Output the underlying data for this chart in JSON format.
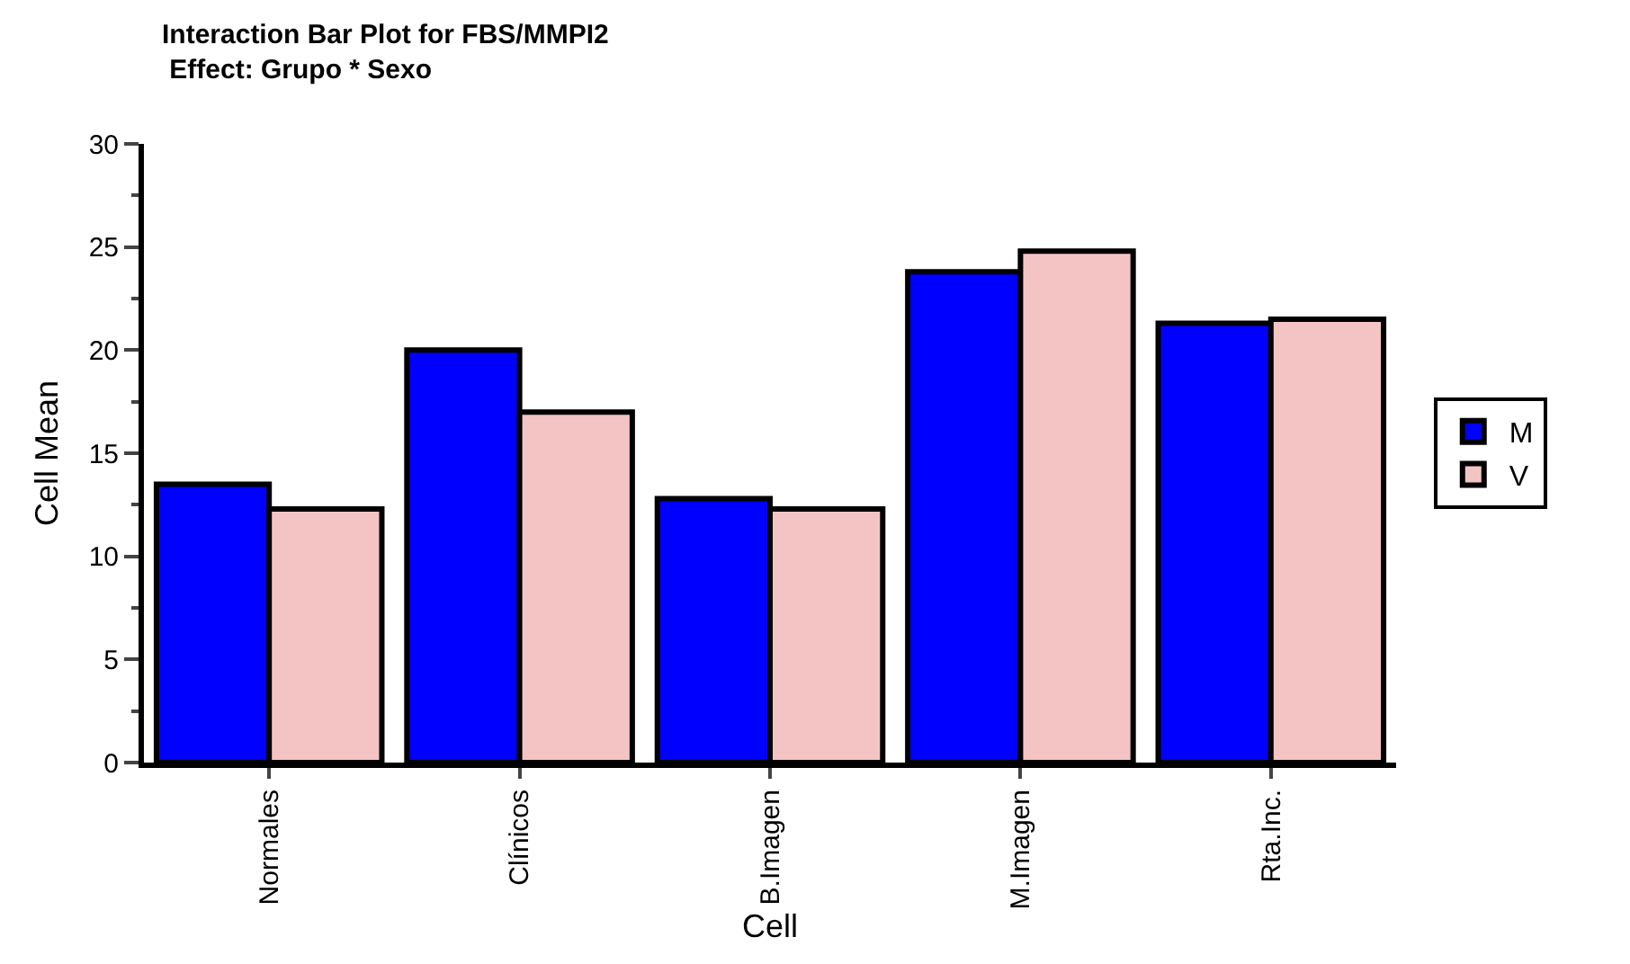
{
  "chart_data": {
    "type": "bar",
    "title": "Interaction Bar Plot for FBS/MMPI2",
    "subtitle": "Effect: Grupo * Sexo",
    "xlabel": "Cell",
    "ylabel": "Cell Mean",
    "categories": [
      "Normales",
      "Clínicos",
      "B.Imagen",
      "M.Imagen",
      "Rta.Inc."
    ],
    "series": [
      {
        "name": "M",
        "color": "#0000ff",
        "values": [
          13.5,
          20.0,
          12.8,
          23.8,
          21.3
        ]
      },
      {
        "name": "V",
        "color": "#f4c4c4",
        "values": [
          12.3,
          17.0,
          12.3,
          24.8,
          21.5
        ]
      }
    ],
    "ylim": [
      0,
      30
    ],
    "yticks": [
      0,
      5,
      10,
      15,
      20,
      25,
      30
    ],
    "grid": false,
    "legend": "right"
  }
}
